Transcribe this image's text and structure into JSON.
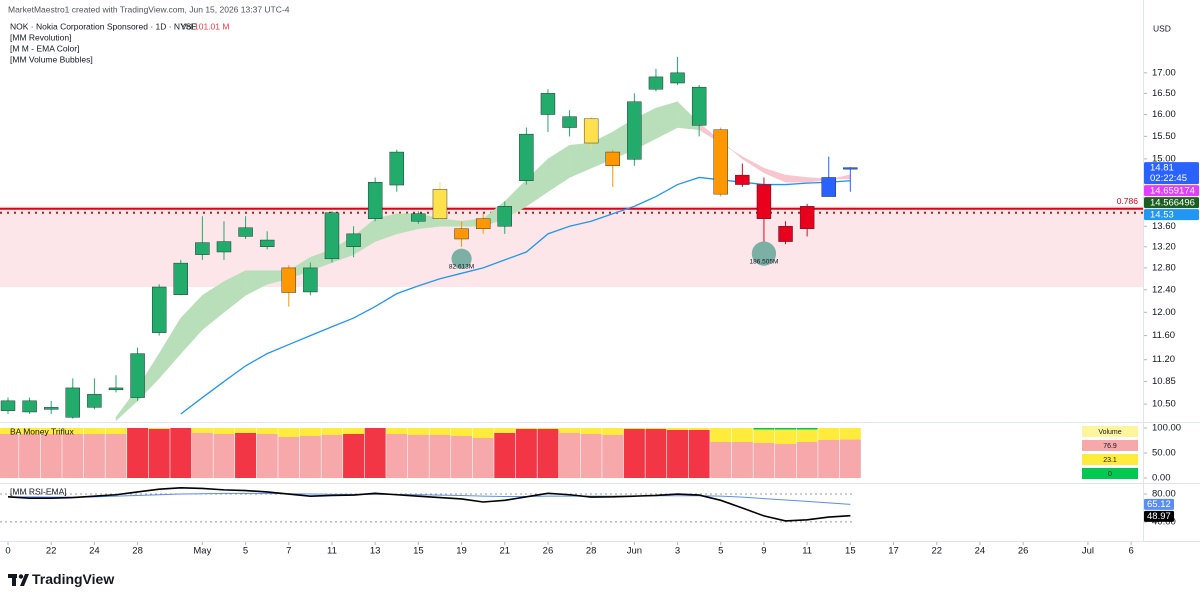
{
  "header": {
    "attribution": "MarketMaestro1 created with TradingView.com, Jun 15, 2026 13:37 UTC-4",
    "symbol": "NOK · Nokia Corporation Sponsored · 1D · NYSE",
    "volume_label": "Vol",
    "volume": "101.01 M",
    "indicators": [
      "[MM Revolution]",
      "[M M - EMA Color]",
      "[MM Volume Bubbles]"
    ],
    "brand": "TradingView"
  },
  "chart_data": [
    {
      "type": "candlestick",
      "currency": "USD",
      "countdown": "02:22:45",
      "log_scale": true,
      "open": [
        10.4,
        10.38,
        10.42,
        10.3,
        10.45,
        10.72,
        10.6,
        11.65,
        12.31,
        13.05,
        13.1,
        13.4,
        13.2,
        12.8,
        12.36,
        12.97,
        13.2,
        13.75,
        14.44,
        13.7,
        13.75,
        13.55,
        13.75,
        13.6,
        14.53,
        16.0,
        15.7,
        15.9,
        15.15,
        14.99,
        16.6,
        16.75,
        15.75,
        15.65,
        14.65,
        14.45,
        13.6,
        14.0,
        14.2,
        14.78
      ],
      "high": [
        10.6,
        10.6,
        10.55,
        10.9,
        10.9,
        10.95,
        11.4,
        12.5,
        12.95,
        13.8,
        13.7,
        13.8,
        13.5,
        12.85,
        12.9,
        13.9,
        13.6,
        14.6,
        15.2,
        13.9,
        14.5,
        13.7,
        13.85,
        14.1,
        15.7,
        16.6,
        16.1,
        15.95,
        15.2,
        16.5,
        17.1,
        17.4,
        16.7,
        15.7,
        14.9,
        14.6,
        13.7,
        14.05,
        15.05,
        14.82
      ],
      "low": [
        10.35,
        10.35,
        10.35,
        10.28,
        10.42,
        10.68,
        10.55,
        11.6,
        12.3,
        12.95,
        12.95,
        13.35,
        13.15,
        12.1,
        12.3,
        12.9,
        13.0,
        13.7,
        14.3,
        13.65,
        13.7,
        13.2,
        13.45,
        13.45,
        14.45,
        15.6,
        15.5,
        15.2,
        14.4,
        14.85,
        16.55,
        16.7,
        15.5,
        14.2,
        14.4,
        13.3,
        13.25,
        13.4,
        14.2,
        14.3
      ],
      "close": [
        10.55,
        10.55,
        10.45,
        10.75,
        10.65,
        10.75,
        11.3,
        12.45,
        12.89,
        13.28,
        13.3,
        13.57,
        13.33,
        12.35,
        12.8,
        13.87,
        13.45,
        14.5,
        15.15,
        13.85,
        14.35,
        13.35,
        13.55,
        14.0,
        15.55,
        16.5,
        15.95,
        15.35,
        14.85,
        16.3,
        16.9,
        17.0,
        16.65,
        14.25,
        14.45,
        13.75,
        13.3,
        13.55,
        14.6,
        14.81
      ],
      "colors": [
        "#22ab6a",
        "#22ab6a",
        "#22ab6a",
        "#22ab6a",
        "#22ab6a",
        "#22ab6a",
        "#22ab6a",
        "#22ab6a",
        "#22ab6a",
        "#22ab6a",
        "#22ab6a",
        "#22ab6a",
        "#22ab6a",
        "#ff9800",
        "#22ab6a",
        "#22ab6a",
        "#22ab6a",
        "#22ab6a",
        "#22ab6a",
        "#22ab6a",
        "#ffe14d",
        "#ff9800",
        "#ff9800",
        "#22ab6a",
        "#22ab6a",
        "#22ab6a",
        "#22ab6a",
        "#ffe14d",
        "#ff9800",
        "#22ab6a",
        "#22ab6a",
        "#22ab6a",
        "#22ab6a",
        "#ff9800",
        "#e8001c",
        "#e8001c",
        "#e8001c",
        "#e8001c",
        "#2962ff",
        "#2962ff"
      ],
      "ema": {
        "color": "#2196f3",
        "values": [
          null,
          null,
          null,
          null,
          null,
          null,
          null,
          null,
          10.35,
          10.6,
          10.85,
          11.1,
          11.3,
          11.45,
          11.6,
          11.75,
          11.9,
          12.1,
          12.33,
          12.47,
          12.6,
          12.7,
          12.8,
          12.95,
          13.1,
          13.45,
          13.6,
          13.7,
          13.85,
          14.0,
          14.2,
          14.45,
          14.6,
          14.55,
          14.5,
          14.45,
          14.45,
          14.48,
          14.5,
          14.53
        ]
      },
      "band": {
        "fast_color": "#e040fb",
        "slow_color": "#1b5e20",
        "fast": [
          null,
          null,
          null,
          null,
          null,
          10.3,
          10.75,
          11.3,
          11.9,
          12.3,
          12.55,
          12.75,
          12.75,
          12.75,
          13.0,
          13.15,
          13.4,
          13.75,
          13.85,
          13.85,
          13.75,
          13.7,
          13.75,
          14.1,
          14.55,
          15.0,
          15.3,
          15.35,
          15.6,
          15.9,
          16.15,
          16.3,
          15.8,
          15.4,
          15.0,
          14.7,
          14.5,
          14.5,
          14.55,
          14.659174
        ],
        "slow": [
          null,
          null,
          null,
          null,
          null,
          10.25,
          10.55,
          10.9,
          11.3,
          11.7,
          12.0,
          12.3,
          12.5,
          12.6,
          12.75,
          12.9,
          13.05,
          13.3,
          13.45,
          13.55,
          13.6,
          13.6,
          13.6,
          13.75,
          14.0,
          14.3,
          14.6,
          14.8,
          15.0,
          15.2,
          15.45,
          15.7,
          15.65,
          15.35,
          15.05,
          14.8,
          14.65,
          14.6,
          14.57,
          14.566496
        ],
        "colors": [
          null,
          null,
          null,
          null,
          null,
          "#b9dfba",
          "#b9dfba",
          "#b9dfba",
          "#b9dfba",
          "#b9dfba",
          "#b9dfba",
          "#b9dfba",
          "#b9dfba",
          "#b9dfba",
          "#b9dfba",
          "#b9dfba",
          "#b9dfba",
          "#b9dfba",
          "#b9dfba",
          "#b9dfba",
          "#b9dfba",
          "#b9dfba",
          "#b9dfba",
          "#b9dfba",
          "#b9dfba",
          "#b9dfba",
          "#b9dfba",
          "#b9dfba",
          "#b9dfba",
          "#b9dfba",
          "#b9dfba",
          "#b9dfba",
          "#f7c6cf",
          "#f7c6cf",
          "#f7c6cf",
          "#f7c6cf",
          "#f7c6cf",
          "#f7c6cf",
          "#f7c6cf",
          "#f7c6cf"
        ]
      },
      "fib_level": {
        "ratio": 0.786,
        "value": 13.95,
        "color": "#e0001b"
      },
      "dotted_level": {
        "value": 13.87,
        "color": "#b71c1c"
      },
      "zone": {
        "low": 12.45,
        "high": 14.0,
        "color": "#fde6e9"
      },
      "bubbles": [
        {
          "x": 21,
          "value": 82613000,
          "value_label": "82.613M"
        },
        {
          "x": 35,
          "value": 186505000,
          "value_label": "186.505M"
        }
      ],
      "ylim": [
        10.23,
        18.9
      ],
      "yticks": [
        {
          "value": 10.5,
          "label": "10.50"
        },
        {
          "value": 10.85,
          "label": "10.85"
        },
        {
          "value": 11.2,
          "label": "11.20"
        },
        {
          "value": 11.6,
          "label": "11.60"
        },
        {
          "value": 12.0,
          "label": "12.00"
        },
        {
          "value": 12.4,
          "label": "12.40"
        },
        {
          "value": 12.8,
          "label": "12.80"
        },
        {
          "value": 13.2,
          "label": "13.20"
        },
        {
          "value": 13.6,
          "label": "13.60"
        },
        {
          "value": 15.0,
          "label": "15.00"
        },
        {
          "value": 15.5,
          "label": "15.50"
        },
        {
          "value": 16.0,
          "label": "16.00"
        },
        {
          "value": 16.5,
          "label": "16.50"
        },
        {
          "value": 17.0,
          "label": "17.00"
        }
      ],
      "xlim": [
        -0.37,
        52.55
      ],
      "xticks": [
        {
          "value": 0,
          "label": "0"
        },
        {
          "value": 2,
          "label": "22"
        },
        {
          "value": 4,
          "label": "24"
        },
        {
          "value": 6,
          "label": "28"
        },
        {
          "value": 9,
          "label": "May"
        },
        {
          "value": 11,
          "label": "5"
        },
        {
          "value": 13,
          "label": "7"
        },
        {
          "value": 15,
          "label": "11"
        },
        {
          "value": 17,
          "label": "13"
        },
        {
          "value": 19,
          "label": "15"
        },
        {
          "value": 21,
          "label": "19"
        },
        {
          "value": 23,
          "label": "21"
        },
        {
          "value": 25,
          "label": "26"
        },
        {
          "value": 27,
          "label": "28"
        },
        {
          "value": 29,
          "label": "Jun"
        },
        {
          "value": 31,
          "label": "3"
        },
        {
          "value": 33,
          "label": "5"
        },
        {
          "value": 35,
          "label": "9"
        },
        {
          "value": 37,
          "label": "11"
        },
        {
          "value": 39,
          "label": "15"
        },
        {
          "value": 41,
          "label": "17"
        },
        {
          "value": 43,
          "label": "22"
        },
        {
          "value": 45,
          "label": "24"
        },
        {
          "value": 47,
          "label": "26"
        },
        {
          "value": 50,
          "label": "Jul"
        },
        {
          "value": 52,
          "label": "6"
        }
      ]
    },
    {
      "type": "stacked_bar",
      "title": "BA Money Triflux",
      "readout_title": "Volume",
      "readout_color": "#fff59d",
      "series": [
        {
          "color": "#f7a8aa",
          "colors": [
            "#f7a8aa",
            "#f7a8aa",
            "#f7a8aa",
            "#f7a8aa",
            "#f7a8aa",
            "#f7a8aa",
            "#f23645",
            "#f23645",
            "#f23645",
            "#f7a8aa",
            "#f7a8aa",
            "#f23645",
            "#f7a8aa",
            "#f7a8aa",
            "#f7a8aa",
            "#f7a8aa",
            "#f23645",
            "#f23645",
            "#f7a8aa",
            "#f7a8aa",
            "#f7a8aa",
            "#f7a8aa",
            "#f7a8aa",
            "#f23645",
            "#f23645",
            "#f23645",
            "#f7a8aa",
            "#f7a8aa",
            "#f7a8aa",
            "#f23645",
            "#f23645",
            "#f23645",
            "#f23645",
            "#f7a8aa",
            "#f7a8aa",
            "#f7a8aa",
            "#f7a8aa",
            "#f7a8aa",
            "#f7a8aa",
            "#f7a8aa"
          ],
          "values": [
            88,
            88,
            88,
            88,
            88,
            88,
            100,
            98,
            100,
            90,
            88,
            90,
            88,
            82,
            84,
            86,
            88,
            100,
            88,
            86,
            86,
            84,
            80,
            90,
            98,
            98,
            90,
            88,
            86,
            98,
            98,
            96,
            96,
            72,
            72,
            70,
            68,
            72,
            76,
            76.9
          ]
        },
        {
          "color": "#ffeb3b",
          "values": [
            12,
            12,
            12,
            12,
            12,
            12,
            0,
            2,
            0,
            10,
            12,
            10,
            12,
            18,
            16,
            14,
            12,
            0,
            12,
            14,
            14,
            16,
            20,
            10,
            2,
            2,
            10,
            12,
            14,
            2,
            2,
            4,
            4,
            28,
            28,
            27,
            29,
            25,
            24,
            23.1
          ]
        },
        {
          "color": "#00c853",
          "values": [
            0,
            0,
            0,
            0,
            0,
            0,
            0,
            0,
            0,
            0,
            0,
            0,
            0,
            0,
            0,
            0,
            0,
            0,
            0,
            0,
            0,
            0,
            0,
            0,
            0,
            0,
            0,
            0,
            0,
            0,
            0,
            0,
            0,
            0,
            0,
            3,
            3,
            3,
            0,
            0
          ]
        }
      ],
      "ylim": [
        -8,
        110
      ],
      "yticks": [
        {
          "value": 100,
          "label": "100.00"
        },
        {
          "value": 50,
          "label": "50.00"
        },
        {
          "value": 0,
          "label": "0.00"
        }
      ]
    },
    {
      "type": "line",
      "title": "[MM RSI-EMA]",
      "series": [
        {
          "color": "#000000",
          "values": [
            76,
            74,
            74,
            75,
            77,
            79,
            83,
            87,
            89,
            88,
            86,
            85,
            83,
            80,
            77,
            78,
            78.5,
            81,
            79,
            77,
            75,
            73,
            68.6,
            71,
            76,
            81,
            79,
            75.7,
            76,
            77,
            78,
            80,
            78.5,
            71,
            60,
            48.6,
            41.4,
            43,
            47,
            48.97
          ]
        },
        {
          "color": "#5b8def",
          "values": [
            76,
            76,
            75.5,
            75.5,
            76,
            77,
            78,
            79,
            80,
            80.5,
            81,
            81,
            81,
            80.5,
            80,
            79.5,
            79.5,
            79.5,
            79.5,
            79,
            78.5,
            78,
            77,
            76.5,
            76.5,
            77,
            77,
            77,
            77,
            77,
            77.5,
            77.5,
            77.5,
            77,
            75.5,
            73.5,
            71.5,
            69.5,
            67.3,
            65.12
          ]
        }
      ],
      "ylim": [
        14,
        93
      ],
      "yticks": [
        {
          "value": 80,
          "label": "80.00"
        },
        {
          "value": 40,
          "label": "40.00"
        }
      ]
    }
  ]
}
